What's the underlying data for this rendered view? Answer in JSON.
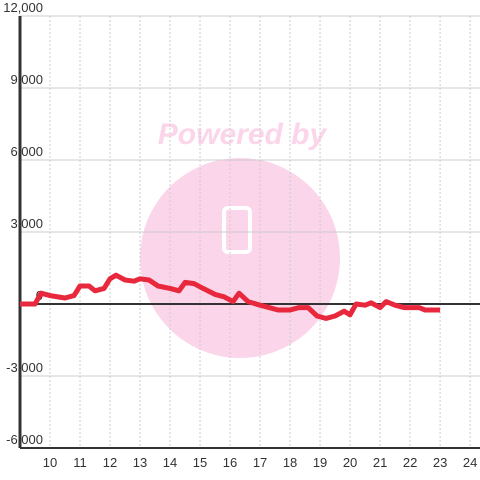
{
  "chart_data": {
    "type": "line",
    "watermark": "Powered by",
    "x": [
      9.0,
      9.5,
      9.7,
      10.0,
      10.5,
      10.8,
      11.0,
      11.3,
      11.5,
      11.8,
      12.0,
      12.2,
      12.5,
      12.8,
      13.0,
      13.3,
      13.6,
      14.0,
      14.3,
      14.5,
      14.8,
      15.1,
      15.5,
      15.8,
      16.1,
      16.3,
      16.6,
      17.0,
      17.3,
      17.6,
      18.0,
      18.3,
      18.6,
      18.9,
      19.2,
      19.5,
      19.8,
      20.0,
      20.2,
      20.5,
      20.7,
      21.0,
      21.2,
      21.5,
      21.8,
      22.0,
      22.3,
      22.5,
      22.8,
      23.0
    ],
    "series": [
      {
        "color": "#e8283c",
        "values": [
          0,
          0,
          450,
          350,
          250,
          350,
          750,
          750,
          550,
          650,
          1050,
          1200,
          1000,
          950,
          1050,
          1000,
          750,
          650,
          550,
          900,
          850,
          650,
          400,
          300,
          100,
          450,
          100,
          -50,
          -150,
          -250,
          -250,
          -150,
          -150,
          -500,
          -600,
          -500,
          -300,
          -450,
          0,
          -50,
          50,
          -150,
          100,
          -50,
          -150,
          -150,
          -150,
          -250,
          -250,
          -250
        ]
      }
    ],
    "xlim": [
      9,
      24.33
    ],
    "xticks": [
      10,
      11,
      12,
      13,
      14,
      15,
      16,
      17,
      18,
      19,
      20,
      21,
      22,
      23,
      24
    ],
    "ylim": [
      -6000,
      12000
    ],
    "yticks": [
      {
        "value": 12000,
        "label": "12,000"
      },
      {
        "value": 9000,
        "label": "9,000"
      },
      {
        "value": 6000,
        "label": "6,000"
      },
      {
        "value": 3000,
        "label": "3,000"
      },
      0,
      {
        "value": -3000,
        "label": "-3,000"
      },
      {
        "value": -6000,
        "label": "-6,000"
      }
    ],
    "grid": true
  }
}
